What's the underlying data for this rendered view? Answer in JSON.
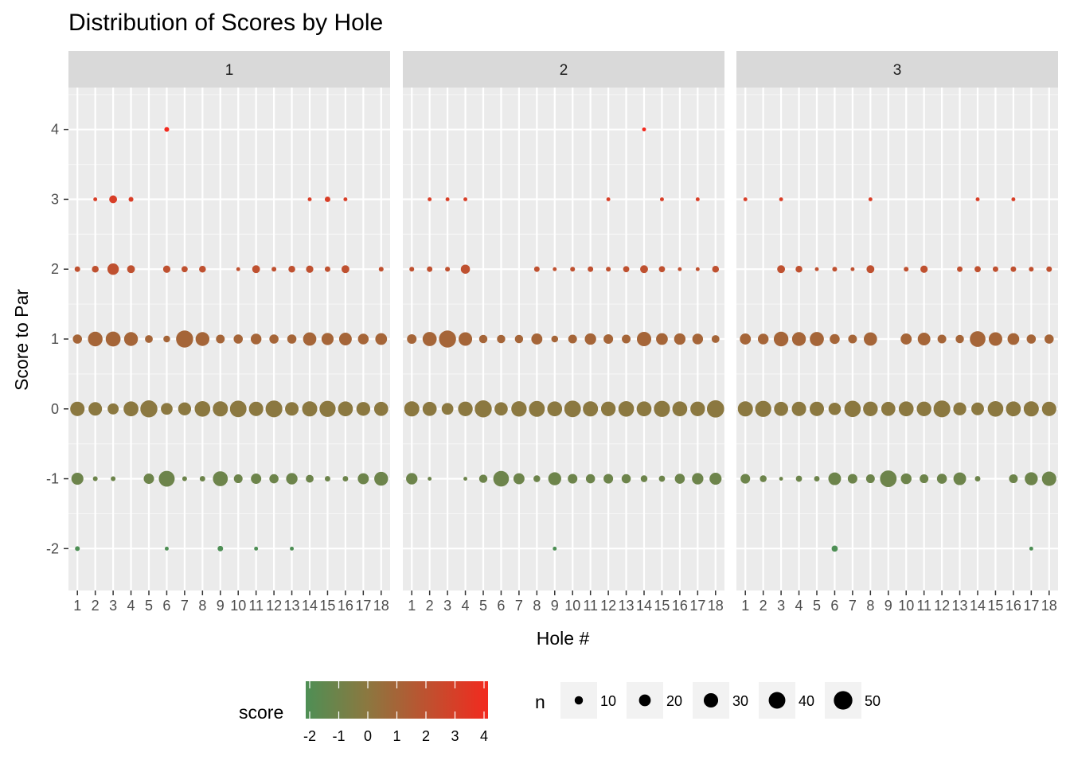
{
  "chart_data": {
    "type": "scatter",
    "title": "Distribution of Scores by Hole",
    "xlabel": "Hole #",
    "ylabel": "Score to Par",
    "facets": [
      "1",
      "2",
      "3"
    ],
    "x_ticks": [
      1,
      2,
      3,
      4,
      5,
      6,
      7,
      8,
      9,
      10,
      11,
      12,
      13,
      14,
      15,
      16,
      17,
      18
    ],
    "y_ticks": [
      -2,
      -1,
      0,
      1,
      2,
      3,
      4
    ],
    "xlim": [
      0.5,
      18.5
    ],
    "ylim": [
      -2.6,
      4.6
    ],
    "grid": true,
    "color_scale": {
      "name": "score",
      "low": "#4e8f55",
      "mid": "#8b7840",
      "high": "#f22a1f",
      "breaks": [
        -2,
        -1,
        0,
        1,
        2,
        3,
        4
      ]
    },
    "size_scale": {
      "name": "n",
      "breaks": [
        10,
        20,
        30,
        40,
        50
      ]
    },
    "legend_position": "bottom",
    "panels": [
      {
        "facet": "1",
        "points": [
          [
            1,
            -2,
            3
          ],
          [
            1,
            -1,
            19
          ],
          [
            1,
            0,
            27
          ],
          [
            1,
            1,
            11
          ],
          [
            1,
            2,
            4
          ],
          [
            2,
            -1,
            3
          ],
          [
            2,
            0,
            24
          ],
          [
            2,
            1,
            28
          ],
          [
            2,
            2,
            6
          ],
          [
            2,
            3,
            2
          ],
          [
            3,
            -1,
            3
          ],
          [
            3,
            0,
            16
          ],
          [
            3,
            1,
            29
          ],
          [
            3,
            2,
            17
          ],
          [
            3,
            3,
            8
          ],
          [
            4,
            0,
            29
          ],
          [
            4,
            1,
            25
          ],
          [
            4,
            2,
            8
          ],
          [
            4,
            3,
            3
          ],
          [
            5,
            -1,
            14
          ],
          [
            5,
            0,
            38
          ],
          [
            5,
            1,
            8
          ],
          [
            6,
            -2,
            2
          ],
          [
            6,
            -1,
            33
          ],
          [
            6,
            0,
            18
          ],
          [
            6,
            1,
            6
          ],
          [
            6,
            2,
            7
          ],
          [
            6,
            4,
            3
          ],
          [
            7,
            -1,
            3
          ],
          [
            7,
            0,
            22
          ],
          [
            7,
            1,
            38
          ],
          [
            7,
            2,
            5
          ],
          [
            8,
            -1,
            4
          ],
          [
            8,
            0,
            32
          ],
          [
            8,
            1,
            25
          ],
          [
            8,
            2,
            6
          ],
          [
            9,
            -2,
            4
          ],
          [
            9,
            -1,
            29
          ],
          [
            9,
            0,
            30
          ],
          [
            9,
            1,
            10
          ],
          [
            10,
            -1,
            10
          ],
          [
            10,
            0,
            36
          ],
          [
            10,
            1,
            11
          ],
          [
            10,
            2,
            2
          ],
          [
            11,
            -2,
            2
          ],
          [
            11,
            -1,
            14
          ],
          [
            11,
            0,
            27
          ],
          [
            11,
            1,
            15
          ],
          [
            11,
            2,
            8
          ],
          [
            12,
            -1,
            11
          ],
          [
            12,
            0,
            37
          ],
          [
            12,
            1,
            11
          ],
          [
            12,
            2,
            3
          ],
          [
            13,
            -2,
            2
          ],
          [
            13,
            -1,
            17
          ],
          [
            13,
            0,
            24
          ],
          [
            13,
            1,
            11
          ],
          [
            13,
            2,
            6
          ],
          [
            14,
            -1,
            8
          ],
          [
            14,
            0,
            30
          ],
          [
            14,
            1,
            23
          ],
          [
            14,
            2,
            7
          ],
          [
            14,
            3,
            2
          ],
          [
            15,
            -1,
            4
          ],
          [
            15,
            0,
            34
          ],
          [
            15,
            1,
            19
          ],
          [
            15,
            2,
            4
          ],
          [
            15,
            3,
            4
          ],
          [
            16,
            -1,
            4
          ],
          [
            16,
            0,
            29
          ],
          [
            16,
            1,
            21
          ],
          [
            16,
            2,
            8
          ],
          [
            16,
            3,
            2
          ],
          [
            17,
            -1,
            16
          ],
          [
            17,
            0,
            25
          ],
          [
            17,
            1,
            15
          ],
          [
            18,
            -1,
            25
          ],
          [
            18,
            0,
            26
          ],
          [
            18,
            1,
            18
          ],
          [
            18,
            2,
            3
          ]
        ]
      },
      {
        "facet": "2",
        "points": [
          [
            1,
            -1,
            17
          ],
          [
            1,
            0,
            30
          ],
          [
            1,
            1,
            12
          ],
          [
            1,
            2,
            3
          ],
          [
            2,
            -1,
            2
          ],
          [
            2,
            0,
            26
          ],
          [
            2,
            1,
            26
          ],
          [
            2,
            2,
            4
          ],
          [
            2,
            3,
            2
          ],
          [
            3,
            0,
            18
          ],
          [
            3,
            1,
            38
          ],
          [
            3,
            2,
            3
          ],
          [
            3,
            3,
            2
          ],
          [
            4,
            -1,
            2
          ],
          [
            4,
            0,
            28
          ],
          [
            4,
            1,
            24
          ],
          [
            4,
            2,
            11
          ],
          [
            4,
            3,
            2
          ],
          [
            5,
            -1,
            9
          ],
          [
            5,
            0,
            38
          ],
          [
            5,
            1,
            9
          ],
          [
            6,
            -1,
            32
          ],
          [
            6,
            0,
            23
          ],
          [
            6,
            1,
            9
          ],
          [
            7,
            -1,
            16
          ],
          [
            7,
            0,
            31
          ],
          [
            7,
            1,
            9
          ],
          [
            8,
            -1,
            6
          ],
          [
            8,
            0,
            33
          ],
          [
            8,
            1,
            16
          ],
          [
            8,
            2,
            4
          ],
          [
            9,
            -2,
            2
          ],
          [
            9,
            -1,
            22
          ],
          [
            9,
            0,
            29
          ],
          [
            9,
            1,
            6
          ],
          [
            9,
            2,
            2
          ],
          [
            10,
            -1,
            12
          ],
          [
            10,
            0,
            36
          ],
          [
            10,
            1,
            10
          ],
          [
            10,
            2,
            3
          ],
          [
            11,
            -1,
            11
          ],
          [
            11,
            0,
            30
          ],
          [
            11,
            1,
            17
          ],
          [
            11,
            2,
            4
          ],
          [
            12,
            -1,
            12
          ],
          [
            12,
            0,
            28
          ],
          [
            12,
            1,
            12
          ],
          [
            12,
            2,
            3
          ],
          [
            12,
            3,
            2
          ],
          [
            13,
            -1,
            11
          ],
          [
            13,
            0,
            32
          ],
          [
            13,
            1,
            10
          ],
          [
            13,
            2,
            5
          ],
          [
            14,
            -1,
            6
          ],
          [
            14,
            0,
            29
          ],
          [
            14,
            1,
            27
          ],
          [
            14,
            2,
            8
          ],
          [
            14,
            4,
            2
          ],
          [
            15,
            -1,
            5
          ],
          [
            15,
            0,
            34
          ],
          [
            15,
            1,
            18
          ],
          [
            15,
            2,
            5
          ],
          [
            15,
            3,
            2
          ],
          [
            16,
            -1,
            13
          ],
          [
            16,
            0,
            29
          ],
          [
            16,
            1,
            17
          ],
          [
            16,
            2,
            2
          ],
          [
            17,
            -1,
            17
          ],
          [
            17,
            0,
            28
          ],
          [
            17,
            1,
            15
          ],
          [
            17,
            2,
            2
          ],
          [
            17,
            3,
            2
          ],
          [
            18,
            -1,
            19
          ],
          [
            18,
            0,
            39
          ],
          [
            18,
            1,
            8
          ],
          [
            18,
            2,
            6
          ]
        ]
      },
      {
        "facet": "3",
        "points": [
          [
            1,
            -1,
            12
          ],
          [
            1,
            0,
            30
          ],
          [
            1,
            1,
            16
          ],
          [
            1,
            3,
            2
          ],
          [
            2,
            -1,
            6
          ],
          [
            2,
            0,
            34
          ],
          [
            2,
            1,
            15
          ],
          [
            3,
            -1,
            2
          ],
          [
            3,
            0,
            26
          ],
          [
            3,
            1,
            28
          ],
          [
            3,
            2,
            8
          ],
          [
            3,
            3,
            2
          ],
          [
            4,
            -1,
            5
          ],
          [
            4,
            0,
            27
          ],
          [
            4,
            1,
            25
          ],
          [
            4,
            2,
            6
          ],
          [
            5,
            -1,
            4
          ],
          [
            5,
            0,
            27
          ],
          [
            5,
            1,
            26
          ],
          [
            5,
            2,
            2
          ],
          [
            6,
            -2,
            5
          ],
          [
            6,
            -1,
            21
          ],
          [
            6,
            0,
            20
          ],
          [
            6,
            1,
            13
          ],
          [
            6,
            2,
            3
          ],
          [
            7,
            -1,
            12
          ],
          [
            7,
            0,
            35
          ],
          [
            7,
            1,
            10
          ],
          [
            7,
            2,
            2
          ],
          [
            8,
            -1,
            10
          ],
          [
            8,
            0,
            28
          ],
          [
            8,
            1,
            23
          ],
          [
            8,
            2,
            8
          ],
          [
            8,
            3,
            2
          ],
          [
            9,
            -1,
            36
          ],
          [
            9,
            0,
            26
          ],
          [
            10,
            -1,
            15
          ],
          [
            10,
            0,
            29
          ],
          [
            10,
            1,
            16
          ],
          [
            10,
            2,
            3
          ],
          [
            11,
            -1,
            10
          ],
          [
            11,
            0,
            28
          ],
          [
            11,
            1,
            21
          ],
          [
            11,
            2,
            7
          ],
          [
            12,
            -1,
            13
          ],
          [
            12,
            0,
            37
          ],
          [
            12,
            1,
            10
          ],
          [
            13,
            -1,
            21
          ],
          [
            13,
            0,
            22
          ],
          [
            13,
            1,
            9
          ],
          [
            13,
            2,
            4
          ],
          [
            14,
            -1,
            4
          ],
          [
            14,
            0,
            21
          ],
          [
            14,
            1,
            32
          ],
          [
            14,
            2,
            5
          ],
          [
            14,
            3,
            2
          ],
          [
            15,
            0,
            32
          ],
          [
            15,
            1,
            24
          ],
          [
            15,
            2,
            4
          ],
          [
            16,
            -1,
            10
          ],
          [
            16,
            0,
            29
          ],
          [
            16,
            1,
            18
          ],
          [
            16,
            2,
            4
          ],
          [
            16,
            3,
            2
          ],
          [
            17,
            -2,
            2
          ],
          [
            17,
            -1,
            22
          ],
          [
            17,
            0,
            30
          ],
          [
            17,
            1,
            11
          ],
          [
            17,
            2,
            3
          ],
          [
            18,
            -1,
            27
          ],
          [
            18,
            0,
            27
          ],
          [
            18,
            1,
            11
          ],
          [
            18,
            2,
            4
          ]
        ]
      }
    ]
  }
}
